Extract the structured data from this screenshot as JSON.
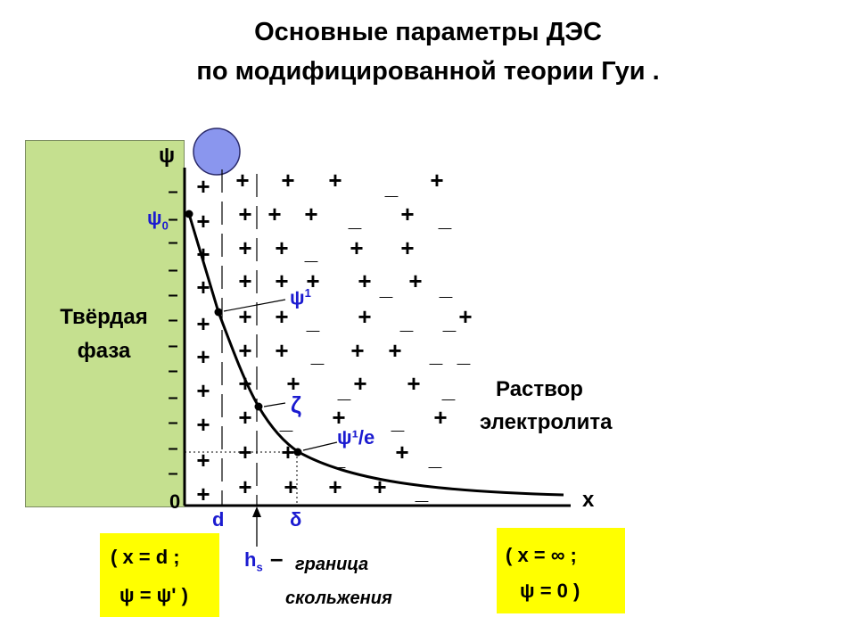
{
  "title": {
    "line1": "Основные параметры ДЭС",
    "line2": "по модифицированной теории Гуи ."
  },
  "solid_phase": {
    "line1": "Твёрдая",
    "line2": "фаза"
  },
  "solution": {
    "line1": "Раствор",
    "line2": "электролита"
  },
  "axes": {
    "y_label": "ψ",
    "x_label": "x",
    "origin": "0"
  },
  "markers": {
    "psi0": "ψ",
    "psi0_sub": "0",
    "psi1": "ψ",
    "psi1_sup": "1",
    "zeta": "ζ",
    "psi1e": "ψ¹/e",
    "d": "d",
    "delta": "δ",
    "hs": "h",
    "hs_sub": "s"
  },
  "slip_boundary": {
    "dash": "–",
    "line1": "граница",
    "line2": "скольжения"
  },
  "left_box": {
    "line1": "( x = d ;",
    "line2": "ψ =  ψ' )"
  },
  "right_box": {
    "line1": "( x =  ∞   ;",
    "line2": "ψ = 0 )"
  },
  "charges": {
    "plus": "+",
    "minus": "_",
    "wall_minus": "–"
  },
  "colors": {
    "solid": "#c5e08f",
    "sphere": "#8a96ee",
    "box": "#ffff00",
    "accent": "#1b1bd0"
  }
}
